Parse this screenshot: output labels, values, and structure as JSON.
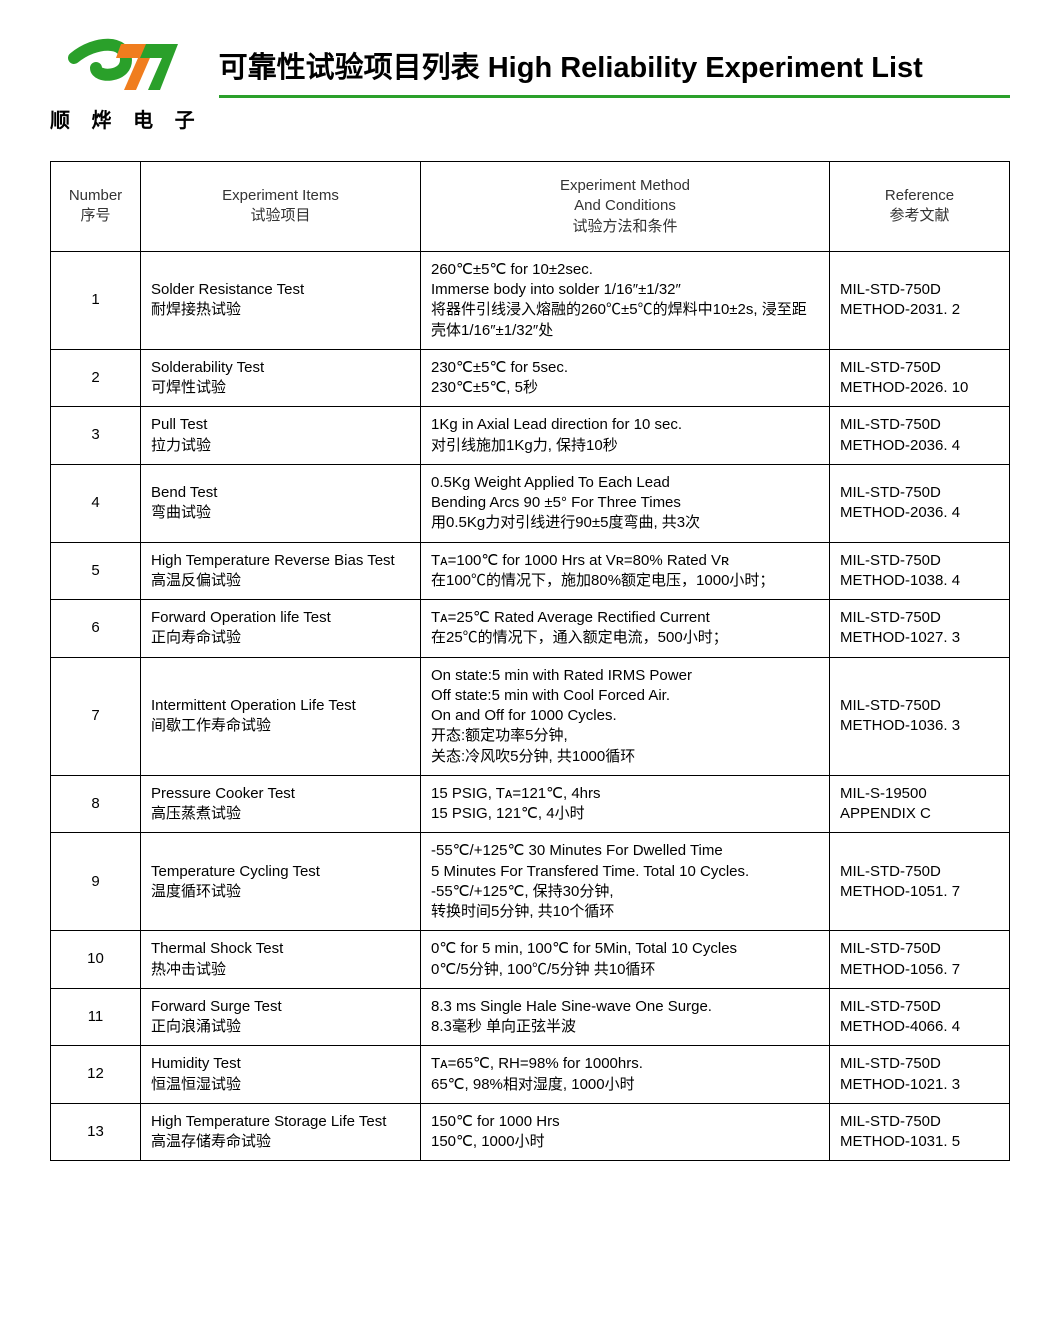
{
  "logo": {
    "brand_cn": "顺 烨 电 子",
    "primary_color": "#2aa02a",
    "accent_color": "#f07d1e"
  },
  "title": "可靠性试验项目列表  High Reliability Experiment List",
  "table": {
    "headers": {
      "number_en": "Number",
      "number_cn": "序号",
      "items_en": "Experiment Items",
      "items_cn": "试验项目",
      "method_en1": "Experiment Method",
      "method_en2": "And Conditions",
      "method_cn": "试验方法和条件",
      "ref_en": "Reference",
      "ref_cn": "参考文献"
    },
    "rows": [
      {
        "num": "1",
        "item_en": "Solder  Resistance Test",
        "item_cn": "耐焊接热试验",
        "method": "260℃±5℃ for 10±2sec.\nImmerse body into solder 1/16″±1/32″\n将器件引线浸入熔融的260℃±5℃的焊料中10±2s, 浸至距壳体1/16″±1/32″处",
        "ref": "MIL-STD-750D\nMETHOD-2031. 2"
      },
      {
        "num": "2",
        "item_en": "Solderability Test",
        "item_cn": "可焊性试验",
        "method": "230℃±5℃ for 5sec.\n230℃±5℃, 5秒",
        "ref": "MIL-STD-750D\nMETHOD-2026. 10"
      },
      {
        "num": "3",
        "item_en": "Pull Test",
        "item_cn": "拉力试验",
        "method": "1Kg in Axial Lead direction for 10 sec.\n对引线施加1Kg力, 保持10秒",
        "ref": "MIL-STD-750D\nMETHOD-2036. 4"
      },
      {
        "num": "4",
        "item_en": "Bend  Test",
        "item_cn": "弯曲试验",
        "method": "0.5Kg Weight Applied To Each Lead\nBending Arcs 90 ±5°  For Three Times\n用0.5Kg力对引线进行90±5度弯曲, 共3次",
        "ref": "MIL-STD-750D\nMETHOD-2036. 4"
      },
      {
        "num": "5",
        "item_en": "High Temperature Reverse Bias Test",
        "item_cn": "高温反偏试验",
        "method": "Tᴀ=100℃ for 1000 Hrs at Vʀ=80% Rated Vʀ\n在100℃的情况下，施加80%额定电压，1000小时；",
        "ref": "MIL-STD-750D\nMETHOD-1038. 4"
      },
      {
        "num": "6",
        "item_en": "Forward Operation life Test",
        "item_cn": "正向寿命试验",
        "method": "Tᴀ=25℃ Rated Average Rectified Current\n在25℃的情况下，通入额定电流，500小时；",
        "ref": "MIL-STD-750D\nMETHOD-1027. 3"
      },
      {
        "num": "7",
        "item_en": "Intermittent Operation Life Test",
        "item_cn": "间歇工作寿命试验",
        "method": "On state:5 min with Rated IRMS Power\nOff state:5 min with Cool Forced Air.\nOn and Off for 1000 Cycles.\n开态:额定功率5分钟,\n关态:冷风吹5分钟, 共1000循环",
        "ref": "MIL-STD-750D\nMETHOD-1036. 3"
      },
      {
        "num": "8",
        "item_en": "Pressure  Cooker Test",
        "item_cn": "高压蒸煮试验",
        "method": "15 PSIG, Tᴀ=121℃, 4hrs\n15 PSIG, 121℃, 4小时",
        "ref": "MIL-S-19500\nAPPENDIX C"
      },
      {
        "num": "9",
        "item_en": "Temperature Cycling Test",
        "item_cn": "温度循环试验",
        "method": "-55℃/+125℃ 30 Minutes For Dwelled Time\n5 Minutes For Transfered Time. Total 10 Cycles.\n-55℃/+125℃, 保持30分钟,\n转换时间5分钟, 共10个循环",
        "ref": "MIL-STD-750D\nMETHOD-1051. 7"
      },
      {
        "num": "10",
        "item_en": "Thermal  Shock Test",
        "item_cn": "热冲击试验",
        "method": "0℃ for 5 min, 100℃ for 5Min, Total 10 Cycles\n0℃/5分钟, 100℃/5分钟  共10循环",
        "ref": "MIL-STD-750D\nMETHOD-1056. 7"
      },
      {
        "num": "11",
        "item_en": "Forward Surge Test",
        "item_cn": "正向浪涌试验",
        "method": "8.3 ms Single Hale Sine-wave One Surge.\n8.3毫秒 单向正弦半波",
        "ref": "MIL-STD-750D\nMETHOD-4066. 4"
      },
      {
        "num": "12",
        "item_en": "Humidity Test",
        "item_cn": "恒温恒湿试验",
        "method": "Tᴀ=65℃, RH=98% for 1000hrs.\n65℃, 98%相对湿度, 1000小时",
        "ref": "MIL-STD-750D\nMETHOD-1021. 3"
      },
      {
        "num": "13",
        "item_en": "High Temperature Storage Life Test",
        "item_cn": "高温存储寿命试验",
        "method": "150℃ for 1000 Hrs\n150℃, 1000小时",
        "ref": "MIL-STD-750D\nMETHOD-1031. 5"
      }
    ]
  }
}
